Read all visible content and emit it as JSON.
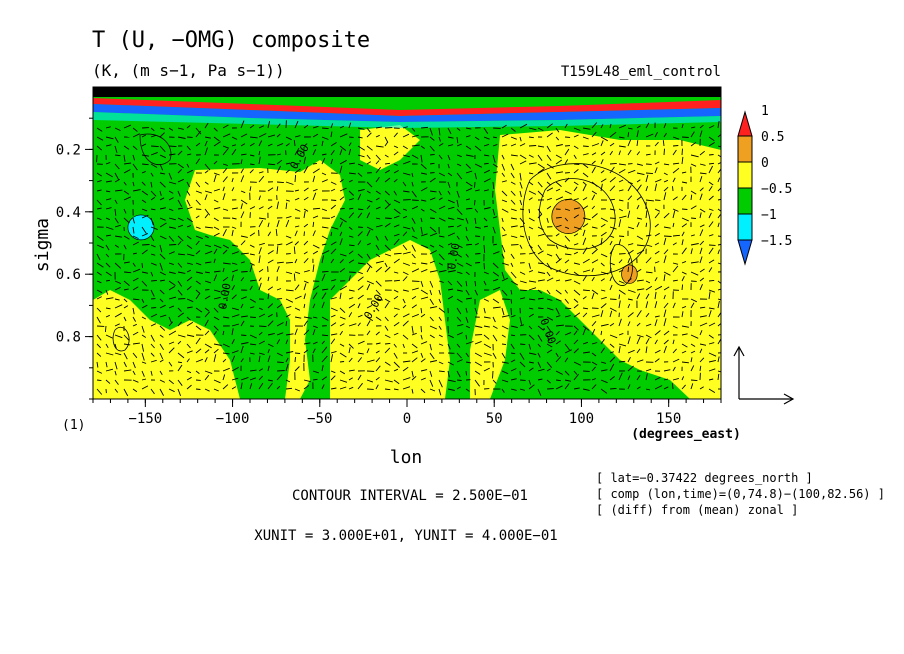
{
  "chart_data": {
    "type": "heatmap",
    "title": "T (U, −OMG) composite",
    "subtitle": "(K, (m s−1, Pa s−1))",
    "run_label": "T159L48_eml_control",
    "xlabel": "lon",
    "xunit_label": "(degrees_east)",
    "ylabel": "sigma",
    "xlim": [
      -180,
      180
    ],
    "ylim": [
      1.0,
      0.0
    ],
    "y_inverted": true,
    "x_ticks": [
      -150,
      -100,
      -50,
      0,
      50,
      100,
      150
    ],
    "y_ticks": [
      0.2,
      0.4,
      0.6,
      0.8
    ],
    "panel_label": "(1)",
    "colorbar": {
      "levels": [
        -1.5,
        -1,
        -0.5,
        0,
        0.5,
        1
      ],
      "tick_labels": [
        "1",
        "0.5",
        "0",
        "−0.5",
        "−1",
        "−1.5"
      ],
      "colors": [
        "#1565ff",
        "#00f0ff",
        "#00cc00",
        "#ffff22",
        "#f0a020",
        "#ff2020"
      ],
      "extend": "both"
    },
    "contour_labels": [
      "0.00",
      "0.00",
      "0.00",
      "0.00",
      "0.00"
    ],
    "regions": [
      {
        "lon": [
          -160,
          -145
        ],
        "sigma": [
          0.41,
          0.49
        ],
        "value": -1.0
      },
      {
        "lon": [
          83,
          102
        ],
        "sigma": [
          0.36,
          0.47
        ],
        "value": 0.5
      },
      {
        "lon": [
          123,
          132
        ],
        "sigma": [
          0.57,
          0.63
        ],
        "value": 0.5
      }
    ],
    "annotations": {
      "lat": "[ lat=−0.37422 degrees_north ]",
      "comp": "[ comp (lon,time)=(0,74.8)−(100,82.56) ]",
      "diff": "[ (diff) from (mean) zonal ]",
      "contour_interval": "CONTOUR INTERVAL = 2.500E−01",
      "units": "XUNIT = 3.000E+01, YUNIT = 4.000E−01"
    }
  }
}
